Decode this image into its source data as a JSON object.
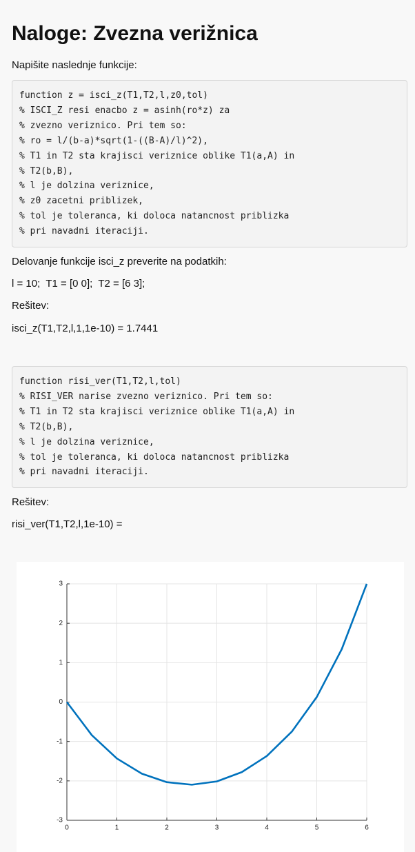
{
  "header": {
    "title": "Naloge: Zvezna verižnica"
  },
  "paragraphs": [
    "Napišite naslednje funkcije:",
    "Delovanje funkcije isci_z preverite na podatkih:",
    "l = 10;  T1 = [0 0];  T2 = [6 3];",
    "Rešitev:",
    "isci_z(T1,T2,l,1,1e-10) = 1.7441",
    "Rešitev:",
    "risi_ver(T1,T2,l,1e-10) ="
  ],
  "code_blocks": [
    [
      "function z = isci_z(T1,T2,l,z0,tol)",
      "% ISCI_Z resi enacbo z = asinh(ro*z) za",
      "% zvezno veriznico. Pri tem so:",
      "% ro = l/(b-a)*sqrt(1-((B-A)/l)^2),",
      "% T1 in T2 sta krajisci veriznice oblike T1(a,A) in",
      "% T2(b,B),",
      "% l je dolzina veriznice,",
      "% z0 zacetni priblizek,",
      "% tol je toleranca, ki doloca natancnost priblizka",
      "% pri navadni iteraciji."
    ],
    [
      "function risi_ver(T1,T2,l,tol)",
      "% RISI_VER narise zvezno veriznico. Pri tem so:",
      "% T1 in T2 sta krajisci veriznice oblike T1(a,A) in",
      "% T2(b,B),",
      "% l je dolzina veriznice,",
      "% tol je toleranca, ki doloca natancnost priblizka",
      "% pri navadni iteraciji."
    ]
  ],
  "chart_data": {
    "type": "line",
    "x": [
      0,
      0.5,
      1,
      1.5,
      2,
      2.5,
      3,
      3.5,
      4,
      4.5,
      5,
      5.5,
      6
    ],
    "series": [
      {
        "color": "#0072bd",
        "values": [
          0,
          -0.841,
          -1.431,
          -1.817,
          -2.033,
          -2.097,
          -2.014,
          -1.778,
          -1.369,
          -0.752,
          0.128,
          1.343,
          3
        ]
      }
    ],
    "xlim": [
      0,
      6
    ],
    "xticks": [
      0,
      1,
      2,
      3,
      4,
      5,
      6
    ],
    "ylim": [
      -3,
      3
    ],
    "yticks": [
      -3,
      -2,
      -1,
      0,
      1,
      2,
      3
    ],
    "grid": true
  }
}
